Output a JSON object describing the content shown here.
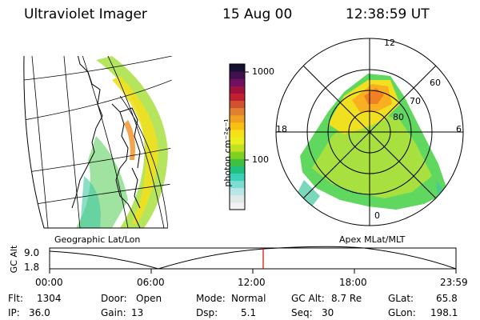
{
  "header": {
    "title": "Ultraviolet Imager",
    "date": "15 Aug 00",
    "time": "12:38:59 UT"
  },
  "left_panel": {
    "caption": "Geographic Lat/Lon"
  },
  "colorbar": {
    "label": "photon cm⁻²s⁻¹",
    "ticks": [
      "1000",
      "100"
    ],
    "colors": [
      "#f2f2f2",
      "#e0e8e8",
      "#b8e6e6",
      "#7ddcd4",
      "#3cd0b8",
      "#20c080",
      "#40c040",
      "#80d020",
      "#c0e020",
      "#e8f020",
      "#f8e018",
      "#f8c010",
      "#f0a020",
      "#e08030",
      "#d05030",
      "#c02030",
      "#a01040",
      "#701060",
      "#401050",
      "#181030"
    ]
  },
  "right_panel": {
    "caption": "Apex MLat/MLT",
    "lat_labels": [
      "60",
      "70",
      "80"
    ],
    "mlt_labels": {
      "top": "12",
      "left": "18",
      "right": "6",
      "bottom": "0"
    }
  },
  "altitude_plot": {
    "ylabel": "GC Alt",
    "ytick_top": "9.0",
    "ytick_bottom": "1.8",
    "x_ticks": [
      "00:00",
      "06:00",
      "12:00",
      "18:00",
      "23:59"
    ],
    "marker_color": "#e00000"
  },
  "status": {
    "flt_label": "Flt:",
    "flt_value": "1304",
    "ip_label": "IP:",
    "ip_value": "36.0",
    "door_label": "Door:",
    "door_value": "Open",
    "gain_label": "Gain:",
    "gain_value": "13",
    "mode_label": "Mode:",
    "mode_value": "Normal",
    "dsp_label": "Dsp:",
    "dsp_value": "5.1",
    "gcalt_label": "GC Alt:",
    "gcalt_value": "8.7 Re",
    "seq_label": "Seq:",
    "seq_value": "30",
    "glat_label": "GLat:",
    "glat_value": "65.8",
    "glon_label": "GLon:",
    "glon_value": "198.1"
  }
}
